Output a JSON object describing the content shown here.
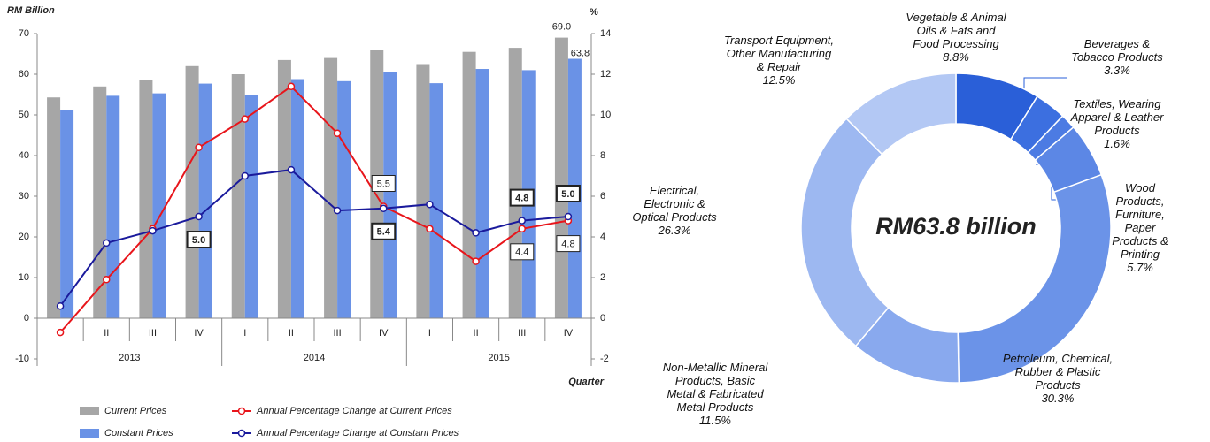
{
  "chart_data": [
    {
      "type": "bar",
      "y_label": "RM Billion",
      "y2_label": "%",
      "x_label": "Quarter",
      "categories": [
        null,
        "II",
        "III",
        "IV",
        "I",
        "II",
        "III",
        "IV",
        "I",
        "II",
        "III",
        "IV"
      ],
      "group_labels": [
        "2013",
        "2014",
        "2015"
      ],
      "ylim": [
        -10,
        70
      ],
      "yticks": [
        -10,
        0,
        10,
        20,
        30,
        40,
        50,
        60,
        70
      ],
      "y2lim": [
        -2,
        14
      ],
      "y2ticks": [
        -2,
        0,
        2,
        4,
        6,
        8,
        10,
        12,
        14
      ],
      "legend": "bottom",
      "series": [
        {
          "name": "Current Prices",
          "type": "bar",
          "color": "#a6a6a6",
          "values": [
            54.3,
            57,
            58.5,
            62,
            60,
            63.5,
            64,
            66,
            62.5,
            65.5,
            66.5,
            69.0
          ],
          "value_labels": [
            null,
            null,
            null,
            null,
            null,
            null,
            null,
            null,
            null,
            null,
            null,
            "69.0"
          ]
        },
        {
          "name": "Constant Prices",
          "type": "bar",
          "color": "#6a92e6",
          "values": [
            51.3,
            54.7,
            55.3,
            57.7,
            55,
            58.8,
            58.3,
            60.5,
            57.8,
            61.3,
            61,
            63.8
          ],
          "value_labels": [
            null,
            null,
            null,
            null,
            null,
            null,
            null,
            null,
            null,
            null,
            null,
            "63.8"
          ]
        },
        {
          "name": "Annual Percentage Change at Current Prices",
          "type": "line",
          "axis": "y2",
          "color": "#e8151b",
          "values": [
            -0.7,
            1.9,
            4.4,
            8.4,
            9.8,
            11.4,
            9.1,
            5.5,
            4.4,
            2.8,
            4.4,
            4.8
          ],
          "value_labels": [
            null,
            null,
            null,
            null,
            null,
            null,
            null,
            "5.5",
            null,
            null,
            "4.4",
            "4.8"
          ]
        },
        {
          "name": "Annual Percentage Change at Constant Prices",
          "type": "line",
          "axis": "y2",
          "color": "#1a1a9c",
          "values": [
            0.6,
            3.7,
            4.3,
            5.0,
            7.0,
            7.3,
            5.3,
            5.4,
            5.6,
            4.2,
            4.8,
            5.0
          ],
          "value_labels": [
            null,
            null,
            null,
            "5.0",
            null,
            null,
            null,
            "5.4",
            null,
            null,
            "4.8",
            "5.0"
          ]
        }
      ]
    },
    {
      "type": "donut",
      "center_label": "RM63.8 billion",
      "categories": [
        "Vegetable & Animal\nOils & Fats and\nFood Processing",
        "Beverages &\nTobacco Products",
        "Textiles, Wearing\nApparel & Leather\nProducts",
        "Wood Products,\nFurniture, Paper\nProducts & Printing",
        "Petroleum, Chemical,\nRubber & Plastic\nProducts",
        "Non-Metallic Mineral\nProducts, Basic\nMetal & Fabricated\nMetal Products",
        "Electrical,\nElectronic &\nOptical Products",
        "Transport Equipment,\nOther Manufacturing\n& Repair"
      ],
      "values": [
        8.8,
        3.3,
        1.6,
        5.7,
        30.3,
        11.5,
        26.3,
        12.5
      ],
      "value_labels": [
        "8.8%",
        "3.3%",
        "1.6%",
        "5.7%",
        "30.3%",
        "11.5%",
        "26.3%",
        "12.5%"
      ],
      "colors": [
        "#2a5fd8",
        "#3c6fe0",
        "#4c7be3",
        "#5c87e5",
        "#6b93e8",
        "#89a9ee",
        "#9db8f1",
        "#b3c8f4"
      ]
    }
  ]
}
